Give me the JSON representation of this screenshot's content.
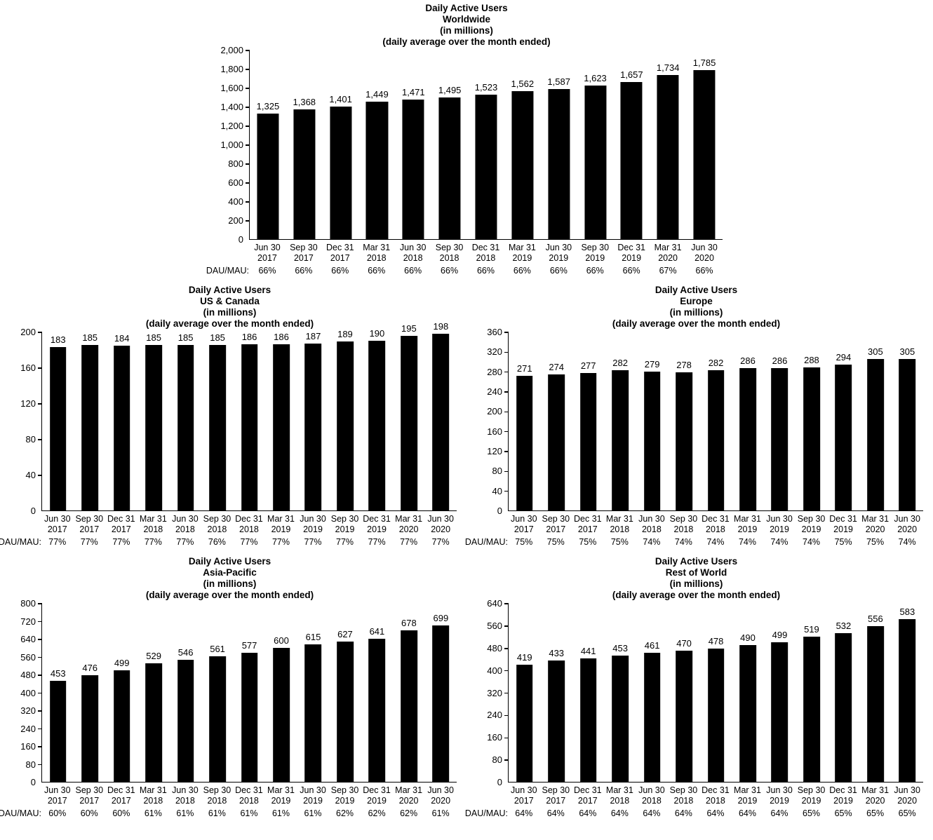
{
  "page": {
    "background": "#ffffff",
    "text_color": "#000000",
    "bar_color": "#000000"
  },
  "chart_data": [
    {
      "type": "bar",
      "title": "Daily Active Users Worldwide (in millions)",
      "title_lines": [
        "Daily Active Users",
        "Worldwide",
        "(in millions)",
        "(daily average over the month ended)"
      ],
      "ylim": [
        0,
        2000
      ],
      "ytick_step": 200,
      "ytick_labels": [
        "2,000",
        "1,800",
        "1,600",
        "1,400",
        "1,200",
        "1,000",
        "800",
        "600",
        "400",
        "200",
        "0"
      ],
      "grid": false,
      "legend": false,
      "categories": [
        "Jun 30 2017",
        "Sep 30 2017",
        "Dec 31 2017",
        "Mar 31 2018",
        "Jun 30 2018",
        "Sep 30 2018",
        "Dec 31 2018",
        "Mar 31 2019",
        "Jun 30 2019",
        "Sep 30 2019",
        "Dec 31 2019",
        "Mar 31 2020",
        "Jun 30 2020"
      ],
      "values": [
        1325,
        1368,
        1401,
        1449,
        1471,
        1495,
        1523,
        1562,
        1587,
        1623,
        1657,
        1734,
        1785
      ],
      "value_labels": [
        "1,325",
        "1,368",
        "1,401",
        "1,449",
        "1,471",
        "1,495",
        "1,523",
        "1,562",
        "1,587",
        "1,623",
        "1,657",
        "1,734",
        "1,785"
      ],
      "footer_label": "DAU/MAU:",
      "dau_mau": [
        "66%",
        "66%",
        "66%",
        "66%",
        "66%",
        "66%",
        "66%",
        "66%",
        "66%",
        "66%",
        "66%",
        "67%",
        "66%"
      ]
    },
    {
      "type": "bar",
      "title": "Daily Active Users US & Canada (in millions)",
      "title_lines": [
        "Daily Active Users",
        "US & Canada",
        "(in millions)",
        "(daily average over the month ended)"
      ],
      "ylim": [
        0,
        200
      ],
      "ytick_step": 40,
      "ytick_labels": [
        "200",
        "160",
        "120",
        "80",
        "40",
        "0"
      ],
      "grid": false,
      "legend": false,
      "categories": [
        "Jun 30 2017",
        "Sep 30 2017",
        "Dec 31 2017",
        "Mar 31 2018",
        "Jun 30 2018",
        "Sep 30 2018",
        "Dec 31 2018",
        "Mar 31 2019",
        "Jun 30 2019",
        "Sep 30 2019",
        "Dec 31 2019",
        "Mar 31 2020",
        "Jun 30 2020"
      ],
      "values": [
        183,
        185,
        184,
        185,
        185,
        185,
        186,
        186,
        187,
        189,
        190,
        195,
        198
      ],
      "value_labels": [
        "183",
        "185",
        "184",
        "185",
        "185",
        "185",
        "186",
        "186",
        "187",
        "189",
        "190",
        "195",
        "198"
      ],
      "footer_label": "DAU/MAU:",
      "dau_mau": [
        "77%",
        "77%",
        "77%",
        "77%",
        "77%",
        "76%",
        "77%",
        "77%",
        "77%",
        "77%",
        "77%",
        "77%",
        "77%"
      ]
    },
    {
      "type": "bar",
      "title": "Daily Active Users Europe (in millions)",
      "title_lines": [
        "Daily Active Users",
        "Europe",
        "(in millions)",
        "(daily average over the month ended)"
      ],
      "ylim": [
        0,
        360
      ],
      "ytick_step": 40,
      "ytick_labels": [
        "360",
        "320",
        "280",
        "240",
        "200",
        "160",
        "120",
        "80",
        "40",
        "0"
      ],
      "grid": false,
      "legend": false,
      "categories": [
        "Jun 30 2017",
        "Sep 30 2017",
        "Dec 31 2017",
        "Mar 31 2018",
        "Jun 30 2018",
        "Sep 30 2018",
        "Dec 31 2018",
        "Mar 31 2019",
        "Jun 30 2019",
        "Sep 30 2019",
        "Dec 31 2019",
        "Mar 31 2020",
        "Jun 30 2020"
      ],
      "values": [
        271,
        274,
        277,
        282,
        279,
        278,
        282,
        286,
        286,
        288,
        294,
        305,
        305
      ],
      "value_labels": [
        "271",
        "274",
        "277",
        "282",
        "279",
        "278",
        "282",
        "286",
        "286",
        "288",
        "294",
        "305",
        "305"
      ],
      "footer_label": "DAU/MAU:",
      "dau_mau": [
        "75%",
        "75%",
        "75%",
        "75%",
        "74%",
        "74%",
        "74%",
        "74%",
        "74%",
        "74%",
        "75%",
        "75%",
        "74%"
      ]
    },
    {
      "type": "bar",
      "title": "Daily Active Users Asia-Pacific (in millions)",
      "title_lines": [
        "Daily Active Users",
        "Asia-Pacific",
        "(in millions)",
        "(daily average over the month ended)"
      ],
      "ylim": [
        0,
        800
      ],
      "ytick_step": 80,
      "ytick_labels": [
        "800",
        "720",
        "640",
        "560",
        "480",
        "400",
        "320",
        "240",
        "160",
        "80",
        "0"
      ],
      "grid": false,
      "legend": false,
      "categories": [
        "Jun 30 2017",
        "Sep 30 2017",
        "Dec 31 2017",
        "Mar 31 2018",
        "Jun 30 2018",
        "Sep 30 2018",
        "Dec 31 2018",
        "Mar 31 2019",
        "Jun 30 2019",
        "Sep 30 2019",
        "Dec 31 2019",
        "Mar 31 2020",
        "Jun 30 2020"
      ],
      "values": [
        453,
        476,
        499,
        529,
        546,
        561,
        577,
        600,
        615,
        627,
        641,
        678,
        699
      ],
      "value_labels": [
        "453",
        "476",
        "499",
        "529",
        "546",
        "561",
        "577",
        "600",
        "615",
        "627",
        "641",
        "678",
        "699"
      ],
      "footer_label": "DAU/MAU:",
      "dau_mau": [
        "60%",
        "60%",
        "60%",
        "61%",
        "61%",
        "61%",
        "61%",
        "61%",
        "61%",
        "62%",
        "62%",
        "62%",
        "61%"
      ]
    },
    {
      "type": "bar",
      "title": "Daily Active Users Rest of World (in millions)",
      "title_lines": [
        "Daily Active Users",
        "Rest of World",
        "(in millions)",
        "(daily average over the month ended)"
      ],
      "ylim": [
        0,
        640
      ],
      "ytick_step": 80,
      "ytick_labels": [
        "640",
        "560",
        "480",
        "400",
        "320",
        "240",
        "160",
        "80",
        "0"
      ],
      "grid": false,
      "legend": false,
      "categories": [
        "Jun 30 2017",
        "Sep 30 2017",
        "Dec 31 2017",
        "Mar 31 2018",
        "Jun 30 2018",
        "Sep 30 2018",
        "Dec 31 2018",
        "Mar 31 2019",
        "Jun 30 2019",
        "Sep 30 2019",
        "Dec 31 2019",
        "Mar 31 2020",
        "Jun 30 2020"
      ],
      "values": [
        419,
        433,
        441,
        453,
        461,
        470,
        478,
        490,
        499,
        519,
        532,
        556,
        583
      ],
      "value_labels": [
        "419",
        "433",
        "441",
        "453",
        "461",
        "470",
        "478",
        "490",
        "499",
        "519",
        "532",
        "556",
        "583"
      ],
      "footer_label": "DAU/MAU:",
      "dau_mau": [
        "64%",
        "64%",
        "64%",
        "64%",
        "64%",
        "64%",
        "64%",
        "64%",
        "64%",
        "65%",
        "65%",
        "65%",
        "65%"
      ]
    }
  ]
}
